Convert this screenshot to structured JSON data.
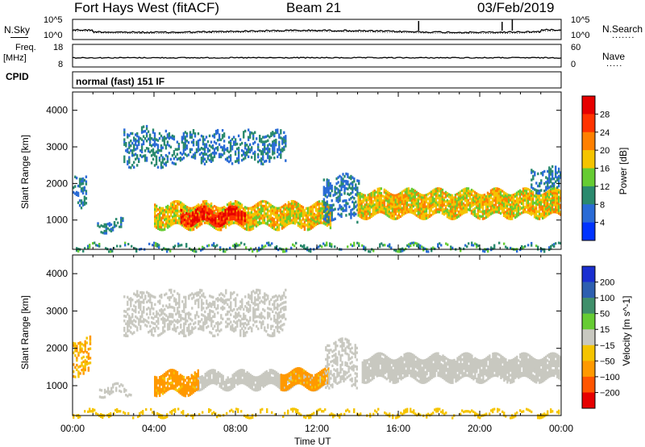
{
  "header": {
    "station": "Fort Hays West (fitACF)",
    "beam": "Beam 21",
    "date": "03/Feb/2019"
  },
  "noise_panel": {
    "left_label": "N.Sky",
    "right_label": "N.Search",
    "left_ticks": [
      "10^5",
      "10^0"
    ],
    "right_ticks": [
      "10^5",
      "10^0"
    ]
  },
  "freq_panel": {
    "left_label": "Freq.",
    "left_unit": "[MHz]",
    "right_label": "Nave",
    "left_ticks": [
      "18",
      "8"
    ],
    "right_ticks": [
      "60",
      "0"
    ]
  },
  "cpid": {
    "label": "CPID",
    "value": "normal (fast) 151 IF"
  },
  "chart_data": [
    {
      "type": "heatmap",
      "title": "",
      "ylabel": "Slant Range [km]",
      "xlabel": "",
      "xlim": [
        "00:00",
        "24:00"
      ],
      "ylim": [
        200,
        4500
      ],
      "yticks": [
        "1000",
        "2000",
        "3000",
        "4000"
      ],
      "colorbar": {
        "label": "Power [dB]",
        "ticks": [
          "4",
          "8",
          "12",
          "16",
          "20",
          "24",
          "28"
        ],
        "colors": [
          "#0033ff",
          "#2a6bd6",
          "#2b8a6e",
          "#66cc33",
          "#f5c400",
          "#ff8000",
          "#ff3300",
          "#e60000"
        ]
      },
      "features": [
        {
          "name": "low-range near echoes",
          "t_start": 0.0,
          "t_end": 24.0,
          "range_km": [
            200,
            320
          ],
          "level_db": 10
        },
        {
          "name": "early returns",
          "t_start": 0.0,
          "t_end": 0.7,
          "range_km": [
            1400,
            2250
          ],
          "level_db": 8
        },
        {
          "name": "early returns low",
          "t_start": 1.2,
          "t_end": 2.5,
          "range_km": [
            700,
            1000
          ],
          "level_db": 8
        },
        {
          "name": "high-range patch",
          "t_start": 2.5,
          "t_end": 4.7,
          "range_km": [
            2500,
            3500
          ],
          "level_db": 8
        },
        {
          "name": "high-range patch 2",
          "t_start": 4.7,
          "t_end": 10.5,
          "range_km": [
            2600,
            3400
          ],
          "level_db": 8
        },
        {
          "name": "main band",
          "t_start": 4.0,
          "t_end": 12.7,
          "range_km": [
            800,
            1450
          ],
          "level_db": 18
        },
        {
          "name": "main band core",
          "t_start": 5.3,
          "t_end": 8.5,
          "range_km": [
            900,
            1300
          ],
          "level_db": 27
        },
        {
          "name": "oblique rise",
          "t_start": 12.3,
          "t_end": 14.1,
          "range_km": [
            1000,
            2200
          ],
          "level_db": 8
        },
        {
          "name": "afternoon band",
          "t_start": 14.0,
          "t_end": 24.0,
          "range_km": [
            1100,
            1800
          ],
          "level_db": 18
        },
        {
          "name": "late high echoes",
          "t_start": 22.5,
          "t_end": 24.0,
          "range_km": [
            1800,
            2400
          ],
          "level_db": 8
        }
      ]
    },
    {
      "type": "heatmap",
      "title": "",
      "ylabel": "Slant Range [km]",
      "xlabel": "Time UT",
      "xlim": [
        "00:00",
        "24:00"
      ],
      "ylim": [
        200,
        4500
      ],
      "yticks": [
        "1000",
        "2000",
        "3000",
        "4000"
      ],
      "xticks": [
        "00:00",
        "04:00",
        "08:00",
        "12:00",
        "16:00",
        "20:00",
        "00:00"
      ],
      "colorbar": {
        "label": "Velocity [m s^-1]",
        "ticks": [
          "200",
          "100",
          "50",
          "15",
          "−15",
          "−50",
          "−100",
          "−200"
        ],
        "colors": [
          "#1a2fd0",
          "#2d5fb0",
          "#3f8f6a",
          "#66cc33",
          "#c8c8c0",
          "#f5c400",
          "#ff9900",
          "#ff5500",
          "#e60000"
        ]
      },
      "features": [
        {
          "name": "near-range ground scatter",
          "t_start": 0.0,
          "t_end": 24.0,
          "range_km": [
            200,
            320
          ],
          "velocity": -30
        },
        {
          "name": "early returns",
          "t_start": 0.0,
          "t_end": 0.9,
          "range_km": [
            1300,
            2250
          ],
          "velocity": -50
        },
        {
          "name": "early low returns",
          "t_start": 1.3,
          "t_end": 2.9,
          "range_km": [
            750,
            1000
          ],
          "velocity": 0
        },
        {
          "name": "high-range patch",
          "t_start": 2.5,
          "t_end": 10.5,
          "range_km": [
            2400,
            3500
          ],
          "velocity": 0
        },
        {
          "name": "main band grey",
          "t_start": 6.0,
          "t_end": 12.5,
          "range_km": [
            950,
            1350
          ],
          "velocity": 0
        },
        {
          "name": "main band orange",
          "t_start": 4.0,
          "t_end": 6.2,
          "range_km": [
            800,
            1350
          ],
          "velocity": -60
        },
        {
          "name": "late main band orange",
          "t_start": 10.2,
          "t_end": 12.6,
          "range_km": [
            950,
            1400
          ],
          "velocity": -60
        },
        {
          "name": "oblique rise",
          "t_start": 12.4,
          "t_end": 14.0,
          "range_km": [
            1000,
            2200
          ],
          "velocity": 0
        },
        {
          "name": "afternoon band",
          "t_start": 14.2,
          "t_end": 24.0,
          "range_km": [
            1150,
            1800
          ],
          "velocity": 0
        }
      ]
    }
  ],
  "colors": {
    "axis": "#000000",
    "background": "#ffffff"
  }
}
